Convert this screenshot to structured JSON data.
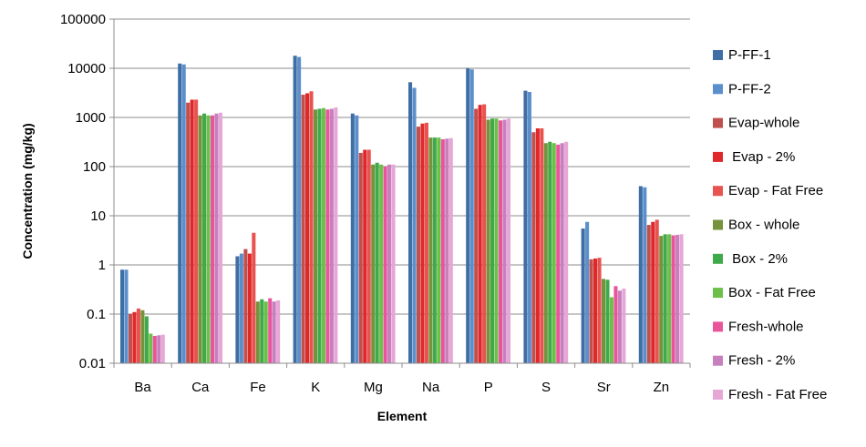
{
  "chart_data": {
    "type": "bar",
    "yscale": "log",
    "ylim": [
      0.01,
      100000
    ],
    "yticks": [
      "100000",
      "10000",
      "1000",
      "100",
      "10",
      "1",
      "0.1",
      "0.01"
    ],
    "ytick_values": [
      100000,
      10000,
      1000,
      100,
      10,
      1,
      0.1,
      0.01
    ],
    "xlabel": "Element",
    "ylabel": "Concentration (mg/kg)",
    "grid": true,
    "legend_position": "right",
    "categories": [
      "Ba",
      "Ca",
      "Fe",
      "K",
      "Mg",
      "Na",
      "P",
      "S",
      "Sr",
      "Zn"
    ],
    "series": [
      {
        "name": "P-FF-1",
        "color": "#3f6ea5",
        "values": [
          0.8,
          12500,
          1.5,
          18000,
          1200,
          5200,
          10000,
          3500,
          5.5,
          40
        ]
      },
      {
        "name": "P-FF-2",
        "color": "#5b8fcc",
        "values": [
          0.8,
          12000,
          1.7,
          17000,
          1100,
          4000,
          9500,
          3300,
          7.5,
          38
        ]
      },
      {
        "name": "Evap-whole",
        "color": "#c0504d",
        "values": [
          0.1,
          2000,
          2.1,
          2900,
          190,
          650,
          1500,
          500,
          1.3,
          6.5
        ]
      },
      {
        "name": " Evap - 2%",
        "color": "#e0272a",
        "values": [
          0.11,
          2300,
          1.7,
          3100,
          220,
          750,
          1800,
          600,
          1.35,
          7.5
        ]
      },
      {
        "name": "Evap - Fat Free",
        "color": "#e8524f",
        "values": [
          0.13,
          2300,
          4.5,
          3400,
          220,
          780,
          1850,
          600,
          1.4,
          8.3
        ]
      },
      {
        "name": "Box - whole",
        "color": "#76923c",
        "values": [
          0.12,
          1100,
          0.18,
          1450,
          110,
          390,
          900,
          300,
          0.52,
          3.9
        ]
      },
      {
        "name": " Box - 2%",
        "color": "#3faa4a",
        "values": [
          0.09,
          1200,
          0.2,
          1500,
          120,
          390,
          950,
          320,
          0.5,
          4.2
        ]
      },
      {
        "name": "Box - Fat Free",
        "color": "#6cc04a",
        "values": [
          0.04,
          1100,
          0.18,
          1550,
          110,
          390,
          950,
          300,
          0.22,
          4.2
        ]
      },
      {
        "name": "Fresh-whole",
        "color": "#e8559b",
        "values": [
          0.036,
          1100,
          0.21,
          1450,
          100,
          360,
          870,
          280,
          0.37,
          4.0
        ]
      },
      {
        "name": "Fresh - 2%",
        "color": "#c77fbd",
        "values": [
          0.037,
          1200,
          0.18,
          1500,
          110,
          370,
          900,
          300,
          0.3,
          4.1
        ]
      },
      {
        "name": "Fresh - Fat Free",
        "color": "#e6a6d6",
        "values": [
          0.038,
          1250,
          0.19,
          1600,
          110,
          380,
          950,
          320,
          0.33,
          4.2
        ]
      }
    ]
  }
}
